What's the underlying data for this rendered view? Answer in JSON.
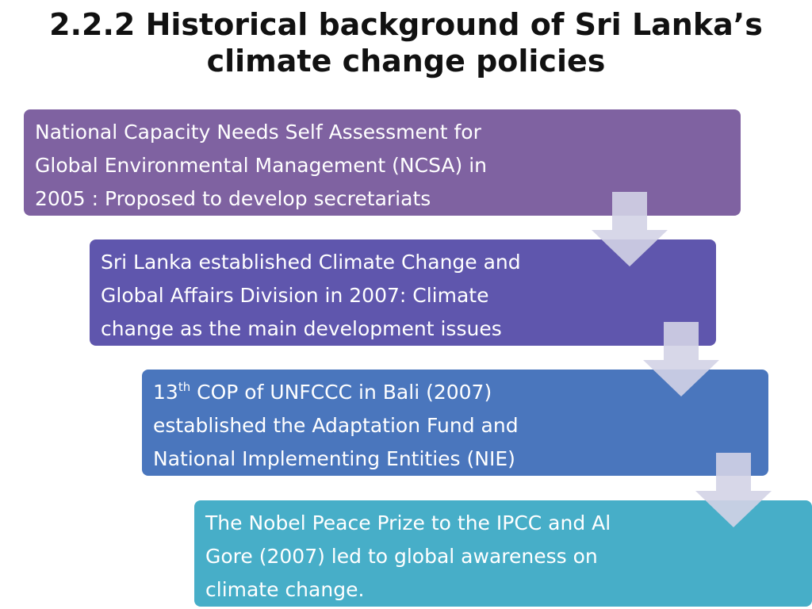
{
  "title": {
    "line1": "2.2.2 Historical background of Sri Lanka’s",
    "line2": "climate change policies"
  },
  "steps": [
    {
      "lines": [
        "National Capacity Needs Self Assessment for",
        "Global Environmental Management (NCSA) in",
        "2005 : Proposed to develop secretariats"
      ],
      "color": "#7f62a1"
    },
    {
      "lines": [
        "Sri Lanka established Climate Change and",
        "Global Affairs Division in 2007: Climate",
        "change as the main development issues"
      ],
      "color": "#5f56ad"
    },
    {
      "line1_number": "13",
      "line1_superscript": "th",
      "line1_rest": " COP of UNFCCC in Bali (2007)",
      "lines": [
        "established the Adaptation Fund and",
        "National Implementing Entities (NIE)"
      ],
      "color": "#4a76bd"
    },
    {
      "lines": [
        "The Nobel Peace Prize to the IPCC and Al",
        "Gore (2007) led to global awareness on",
        "climate change."
      ],
      "color": "#47aec8"
    }
  ],
  "arrow_color": "#d3d3e6"
}
